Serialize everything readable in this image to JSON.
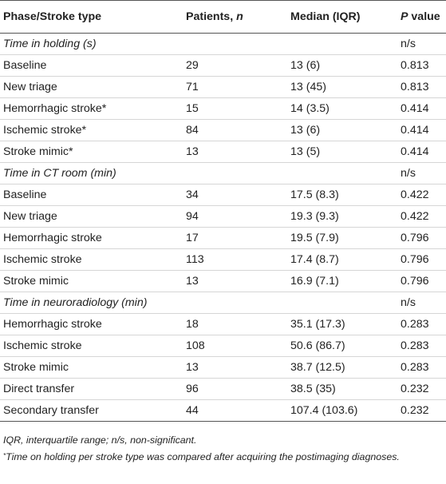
{
  "header": {
    "col1": "Phase/Stroke type",
    "col2_main": "Patients, ",
    "col2_n": "n",
    "col3": "Median (IQR)",
    "col4_p": "P",
    "col4_rest": " value"
  },
  "sections": [
    {
      "title": "Time in holding (s)",
      "p": "n/s",
      "rows": [
        {
          "type": "Baseline",
          "n": "29",
          "median": "13 (6)",
          "p": "0.813"
        },
        {
          "type": "New triage",
          "n": "71",
          "median": "13 (45)",
          "p": "0.813"
        },
        {
          "type": "Hemorrhagic stroke*",
          "n": "15",
          "median": "14 (3.5)",
          "p": "0.414"
        },
        {
          "type": "Ischemic stroke*",
          "n": "84",
          "median": "13 (6)",
          "p": "0.414"
        },
        {
          "type": "Stroke mimic*",
          "n": "13",
          "median": "13 (5)",
          "p": "0.414"
        }
      ]
    },
    {
      "title": "Time in CT room (min)",
      "p": "n/s",
      "rows": [
        {
          "type": "Baseline",
          "n": "34",
          "median": "17.5 (8.3)",
          "p": "0.422"
        },
        {
          "type": "New triage",
          "n": "94",
          "median": "19.3 (9.3)",
          "p": "0.422"
        },
        {
          "type": "Hemorrhagic stroke",
          "n": "17",
          "median": "19.5 (7.9)",
          "p": "0.796"
        },
        {
          "type": "Ischemic stroke",
          "n": "113",
          "median": "17.4 (8.7)",
          "p": "0.796"
        },
        {
          "type": "Stroke mimic",
          "n": "13",
          "median": "16.9 (7.1)",
          "p": "0.796"
        }
      ]
    },
    {
      "title": "Time in neuroradiology (min)",
      "p": "n/s",
      "rows": [
        {
          "type": "Hemorrhagic stroke",
          "n": "18",
          "median": "35.1 (17.3)",
          "p": "0.283"
        },
        {
          "type": "Ischemic stroke",
          "n": "108",
          "median": "50.6 (86.7)",
          "p": "0.283"
        },
        {
          "type": "Stroke mimic",
          "n": "13",
          "median": "38.7 (12.5)",
          "p": "0.283"
        },
        {
          "type": "Direct transfer",
          "n": "96",
          "median": "38.5 (35)",
          "p": "0.232"
        },
        {
          "type": "Secondary transfer",
          "n": "44",
          "median": "107.4 (103.6)",
          "p": "0.232"
        }
      ]
    }
  ],
  "notes": {
    "abbrev": "IQR, interquartile range; n/s, non-significant.",
    "footnote_mark": "*",
    "footnote": "Time on holding per stroke type was compared after acquiring the postimaging diagnoses."
  }
}
